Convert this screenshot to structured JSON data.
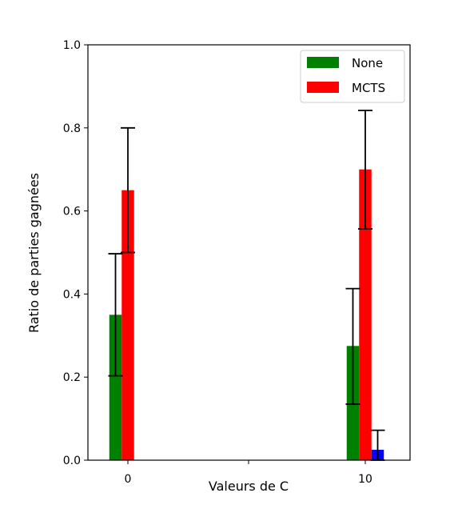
{
  "chart_data": {
    "type": "bar",
    "xlabel": "Valeurs de C",
    "ylabel": "Ratio de parties gagnées",
    "categories": [
      "0",
      "10"
    ],
    "ylim": [
      0.0,
      1.0
    ],
    "yticks": [
      "0.0",
      "0.2",
      "0.4",
      "0.6",
      "0.8",
      "1.0"
    ],
    "legend_position": "top-right",
    "grid": false,
    "series": [
      {
        "name": "None",
        "color": "#008000",
        "values": [
          0.35,
          0.275
        ],
        "err_low": [
          0.203,
          0.135
        ],
        "err_high": [
          0.497,
          0.413
        ]
      },
      {
        "name": "MCTS",
        "color": "#ff0000",
        "values": [
          0.65,
          0.7
        ],
        "err_low": [
          0.5,
          0.557
        ],
        "err_high": [
          0.8,
          0.842
        ]
      },
      {
        "color": "#0000ff",
        "values": [
          0.0,
          0.025
        ],
        "err_low": [
          0.0,
          0.0
        ],
        "err_high": [
          0.0,
          0.072
        ]
      }
    ]
  }
}
